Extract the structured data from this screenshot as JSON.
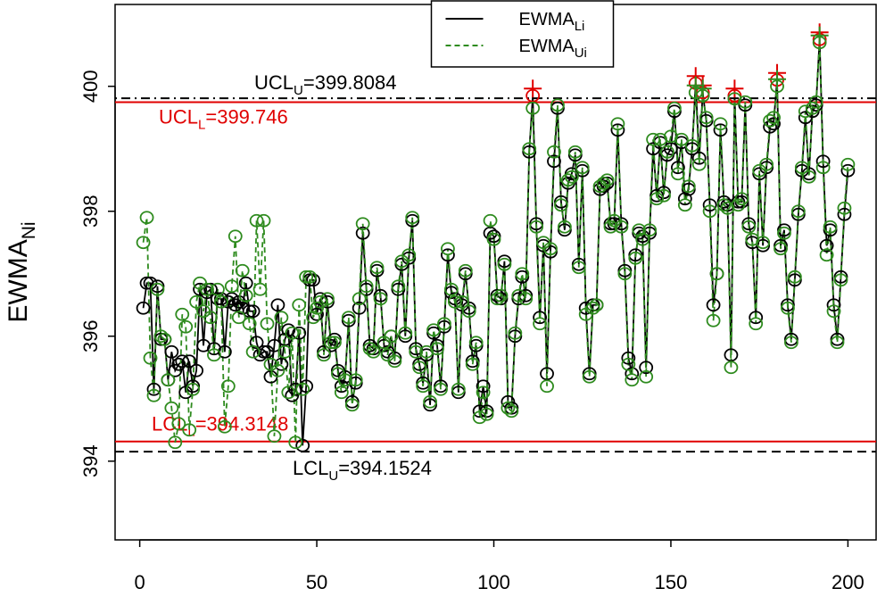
{
  "chart_data": {
    "type": "line",
    "ylabel": "EWMA",
    "ylabel_sub": "Ni",
    "xlim": [
      -6.96,
      207.96
    ],
    "ylim": [
      392.74,
      401.31
    ],
    "xticks": [
      0,
      50,
      100,
      150,
      200
    ],
    "yticks": [
      394,
      396,
      398,
      400
    ],
    "legend": "top",
    "out_of_control_color": "#e00000",
    "limits": [
      {
        "label": "UCL",
        "sub": "U",
        "text": "=399.8084",
        "value": 399.8084,
        "color": "#000000",
        "style": "dotdash"
      },
      {
        "label": "UCL",
        "sub": "L",
        "text": "=399.746",
        "value": 399.746,
        "color": "#e00000",
        "style": "solid"
      },
      {
        "label": "LCL",
        "sub": "L",
        "text": "=394.3148",
        "value": 394.3148,
        "color": "#e00000",
        "style": "solid"
      },
      {
        "label": "LCL",
        "sub": "U",
        "text": "=394.1524",
        "value": 394.1524,
        "color": "#000000",
        "style": "dashed"
      }
    ],
    "x": [
      1,
      2,
      3,
      4,
      5,
      6,
      7,
      8,
      9,
      10,
      11,
      12,
      13,
      14,
      15,
      16,
      17,
      18,
      19,
      20,
      21,
      22,
      23,
      24,
      25,
      26,
      27,
      28,
      29,
      30,
      31,
      32,
      33,
      34,
      35,
      36,
      37,
      38,
      39,
      40,
      41,
      42,
      43,
      44,
      45,
      46,
      47,
      48,
      49,
      50,
      51,
      52,
      53,
      54,
      55,
      56,
      57,
      58,
      59,
      60,
      61,
      62,
      63,
      64,
      65,
      66,
      67,
      68,
      69,
      70,
      71,
      72,
      73,
      74,
      75,
      76,
      77,
      78,
      79,
      80,
      81,
      82,
      83,
      84,
      85,
      86,
      87,
      88,
      89,
      90,
      91,
      92,
      93,
      94,
      95,
      96,
      97,
      98,
      99,
      100,
      101,
      102,
      103,
      104,
      105,
      106,
      107,
      108,
      109,
      110,
      111,
      112,
      113,
      114,
      115,
      116,
      117,
      118,
      119,
      120,
      121,
      122,
      123,
      124,
      125,
      126,
      127,
      128,
      129,
      130,
      131,
      132,
      133,
      134,
      135,
      136,
      137,
      138,
      139,
      140,
      141,
      142,
      143,
      144,
      145,
      146,
      147,
      148,
      149,
      150,
      151,
      152,
      153,
      154,
      155,
      156,
      157,
      158,
      159,
      160,
      161,
      162,
      163,
      164,
      165,
      166,
      167,
      168,
      169,
      170,
      171,
      172,
      173,
      174,
      175,
      176,
      177,
      178,
      179,
      180,
      181,
      182,
      183,
      184,
      185,
      186,
      187,
      188,
      189,
      190,
      191,
      192,
      193,
      194,
      195,
      196,
      197,
      198,
      199,
      200
    ],
    "series": [
      {
        "name": "EWMA",
        "name_sub": "Li",
        "color": "#000000",
        "dash": false,
        "values": [
          396.45,
          396.85,
          396.85,
          395.15,
          396.8,
          395.95,
          395.95,
          395.3,
          395.75,
          395.45,
          395.55,
          395.6,
          395.1,
          395.6,
          395.2,
          395.45,
          396.75,
          395.85,
          396.7,
          396.75,
          395.8,
          396.6,
          396.6,
          395.75,
          396.55,
          396.6,
          396.5,
          396.55,
          396.45,
          396.85,
          396.4,
          396.4,
          395.9,
          395.7,
          395.75,
          395.75,
          395.35,
          395.85,
          396.5,
          395.55,
          395.95,
          396.1,
          395.05,
          395.15,
          396.05,
          394.25,
          395.2,
          396.9,
          396.9,
          396.35,
          396.6,
          395.75,
          396.55,
          395.85,
          395.95,
          395.45,
          395.2,
          395.35,
          396.25,
          394.95,
          395.25,
          396.45,
          397.65,
          396.75,
          395.85,
          395.8,
          397.05,
          396.65,
          395.85,
          395.75,
          396.0,
          395.65,
          396.75,
          397.15,
          396.0,
          397.25,
          397.85,
          395.8,
          395.55,
          395.25,
          395.7,
          394.9,
          396.05,
          395.85,
          395.2,
          396.15,
          397.3,
          396.7,
          396.6,
          395.1,
          396.5,
          397.0,
          396.45,
          395.6,
          395.85,
          394.8,
          395.2,
          394.8,
          397.65,
          397.6,
          396.65,
          396.6,
          397.2,
          394.95,
          394.85,
          396.0,
          396.6,
          396.95,
          396.65,
          398.95,
          399.85,
          397.8,
          396.3,
          397.45,
          395.4,
          397.35,
          398.8,
          399.65,
          398.15,
          397.7,
          398.45,
          398.6,
          398.9,
          397.15,
          398.65,
          396.45,
          395.4,
          396.5,
          396.5,
          398.35,
          398.4,
          398.45,
          397.8,
          397.8,
          399.3,
          397.8,
          397.05,
          395.65,
          395.4,
          397.3,
          397.65,
          397.6,
          395.5,
          397.65,
          399.0,
          398.25,
          399.1,
          398.3,
          398.9,
          399.0,
          399.6,
          398.7,
          399.1,
          398.2,
          398.35,
          399.0,
          400.05,
          398.85,
          399.9,
          399.45,
          398.1,
          396.5,
          397.0,
          399.3,
          398.15,
          398.1,
          395.7,
          399.85,
          398.15,
          398.15,
          399.7,
          397.8,
          397.5,
          396.3,
          398.6,
          397.45,
          398.7,
          399.35,
          399.4,
          400.1,
          397.45,
          397.7,
          396.5,
          395.95,
          396.9,
          397.95,
          398.65,
          399.5,
          398.6,
          399.6,
          399.7,
          400.75,
          398.8,
          397.45,
          397.7,
          396.5,
          395.95,
          396.95,
          397.95,
          398.65
        ]
      },
      {
        "name": "EWMA",
        "name_sub": "Ui",
        "color": "#2e8b1e",
        "dash": true,
        "values": [
          397.5,
          397.9,
          395.65,
          395.05,
          396.75,
          396.0,
          395.95,
          395.3,
          394.85,
          394.3,
          394.6,
          396.35,
          396.15,
          394.5,
          395.15,
          396.55,
          396.85,
          396.4,
          396.75,
          396.3,
          395.7,
          396.75,
          396.55,
          394.55,
          395.2,
          396.8,
          397.6,
          396.3,
          397.05,
          396.65,
          396.2,
          395.75,
          397.85,
          396.75,
          397.85,
          396.2,
          395.55,
          394.4,
          395.45,
          396.3,
          395.75,
          395.1,
          396.05,
          394.3,
          396.5,
          395.15,
          396.95,
          396.95,
          396.3,
          396.45,
          396.55,
          395.7,
          396.6,
          395.9,
          395.9,
          395.4,
          395.1,
          395.3,
          396.3,
          394.9,
          395.3,
          396.6,
          397.8,
          396.8,
          395.8,
          395.75,
          397.1,
          396.6,
          395.9,
          395.7,
          396.0,
          395.6,
          396.8,
          397.2,
          396.05,
          397.3,
          397.9,
          395.75,
          395.5,
          395.2,
          395.75,
          394.95,
          396.1,
          395.8,
          395.15,
          396.2,
          397.4,
          396.75,
          396.55,
          395.15,
          396.55,
          397.05,
          396.4,
          395.55,
          395.9,
          394.7,
          395.1,
          394.75,
          397.85,
          397.55,
          396.6,
          396.65,
          397.15,
          394.85,
          394.8,
          396.05,
          396.65,
          397.0,
          396.6,
          399.0,
          399.65,
          397.75,
          396.2,
          397.5,
          395.2,
          397.4,
          398.95,
          399.7,
          398.1,
          397.75,
          398.5,
          398.55,
          398.95,
          397.1,
          398.7,
          396.35,
          395.35,
          396.45,
          396.5,
          398.4,
          398.45,
          398.5,
          397.75,
          397.85,
          399.4,
          397.75,
          397.0,
          395.55,
          395.3,
          397.25,
          397.7,
          397.55,
          395.35,
          397.7,
          399.15,
          398.2,
          399.15,
          398.25,
          398.95,
          399.2,
          399.65,
          398.6,
          399.15,
          398.1,
          398.4,
          399.05,
          399.9,
          398.75,
          399.85,
          399.5,
          398.0,
          396.25,
          397.0,
          399.4,
          398.1,
          398.05,
          395.5,
          399.8,
          398.1,
          398.2,
          399.75,
          397.75,
          397.55,
          396.2,
          398.65,
          397.5,
          398.75,
          399.45,
          399.5,
          400.0,
          397.4,
          397.65,
          396.45,
          395.9,
          396.95,
          398.0,
          398.7,
          399.6,
          398.55,
          399.65,
          399.75,
          400.7,
          398.7,
          397.3,
          397.75,
          396.4,
          395.9,
          396.9,
          398.05,
          398.75
        ]
      }
    ]
  }
}
